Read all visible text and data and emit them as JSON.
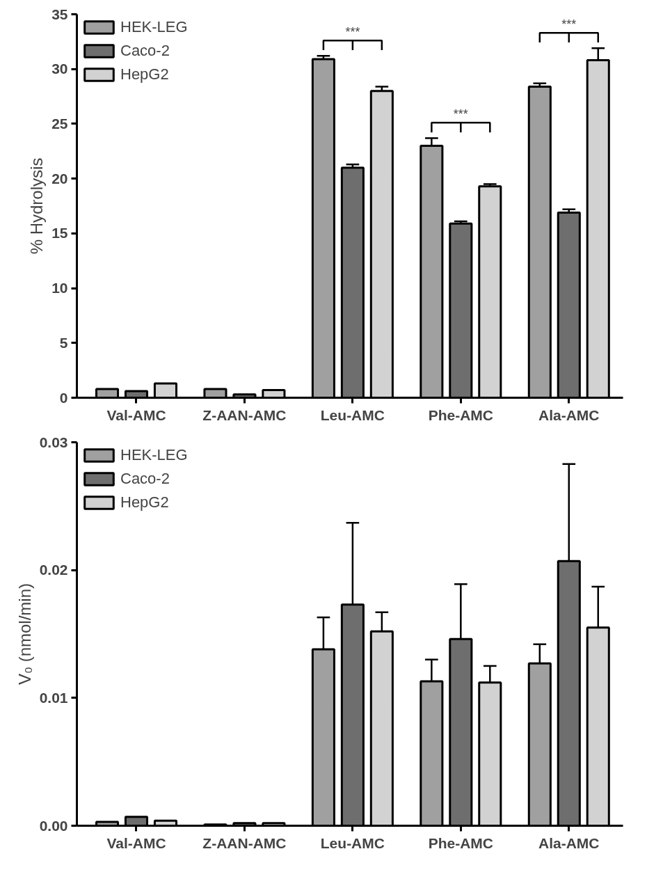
{
  "chart_data": [
    {
      "type": "bar",
      "ylabel": "% Hydrolysis",
      "categories": [
        "Val-AMC",
        "Z-AAN-AMC",
        "Leu-AMC",
        "Phe-AMC",
        "Ala-AMC"
      ],
      "series": [
        {
          "name": "HEK-LEG",
          "color": "#a0a0a0",
          "values": [
            0.8,
            0.8,
            30.9,
            23.0,
            28.4
          ],
          "errors": [
            null,
            null,
            [
              30.9,
              31.2
            ],
            [
              23.0,
              23.7
            ],
            [
              28.4,
              28.7
            ]
          ]
        },
        {
          "name": "Caco-2",
          "color": "#6e6e6e",
          "values": [
            0.6,
            0.3,
            21.0,
            15.9,
            16.9
          ],
          "errors": [
            null,
            null,
            [
              21.0,
              21.3
            ],
            [
              15.9,
              16.1
            ],
            [
              16.9,
              17.2
            ]
          ]
        },
        {
          "name": "HepG2",
          "color": "#d2d2d2",
          "values": [
            1.3,
            0.7,
            28.0,
            19.3,
            30.8
          ],
          "errors": [
            null,
            null,
            [
              28.0,
              28.4
            ],
            [
              19.3,
              19.5
            ],
            [
              30.8,
              31.9
            ]
          ]
        }
      ],
      "ylim": [
        0,
        35
      ],
      "yticks": [
        0,
        5,
        10,
        15,
        20,
        25,
        30,
        35
      ],
      "grid": false,
      "legend": "top left",
      "annotations": [
        "***",
        "***",
        "***"
      ]
    },
    {
      "type": "bar",
      "ylabel": "V₀ (nmol/min)",
      "categories": [
        "Val-AMC",
        "Z-AAN-AMC",
        "Leu-AMC",
        "Phe-AMC",
        "Ala-AMC"
      ],
      "series": [
        {
          "name": "HEK-LEG",
          "color": "#a0a0a0",
          "values": [
            0.0003,
            0.0001,
            0.0138,
            0.0113,
            0.0127
          ],
          "errors": [
            null,
            null,
            [
              0.0138,
              0.0163
            ],
            [
              0.0113,
              0.013
            ],
            [
              0.0127,
              0.0142
            ]
          ]
        },
        {
          "name": "Caco-2",
          "color": "#6e6e6e",
          "values": [
            0.0007,
            0.0002,
            0.0173,
            0.0146,
            0.0207
          ],
          "errors": [
            null,
            null,
            [
              0.0173,
              0.0237
            ],
            [
              0.0146,
              0.0189
            ],
            [
              0.0207,
              0.0283
            ]
          ]
        },
        {
          "name": "HepG2",
          "color": "#d2d2d2",
          "values": [
            0.0004,
            0.0002,
            0.0152,
            0.0112,
            0.0155
          ],
          "errors": [
            null,
            null,
            [
              0.0152,
              0.0167
            ],
            [
              0.0112,
              0.0125
            ],
            [
              0.0155,
              0.0187
            ]
          ]
        }
      ],
      "ylim": [
        0,
        0.03
      ],
      "yticks": [
        {
          "value": 0,
          "label": "0.00"
        },
        {
          "value": 0.01,
          "label": "0.01"
        },
        {
          "value": 0.02,
          "label": "0.02"
        },
        {
          "value": 0.03,
          "label": "0.03"
        }
      ],
      "grid": false,
      "legend": "top left"
    }
  ]
}
